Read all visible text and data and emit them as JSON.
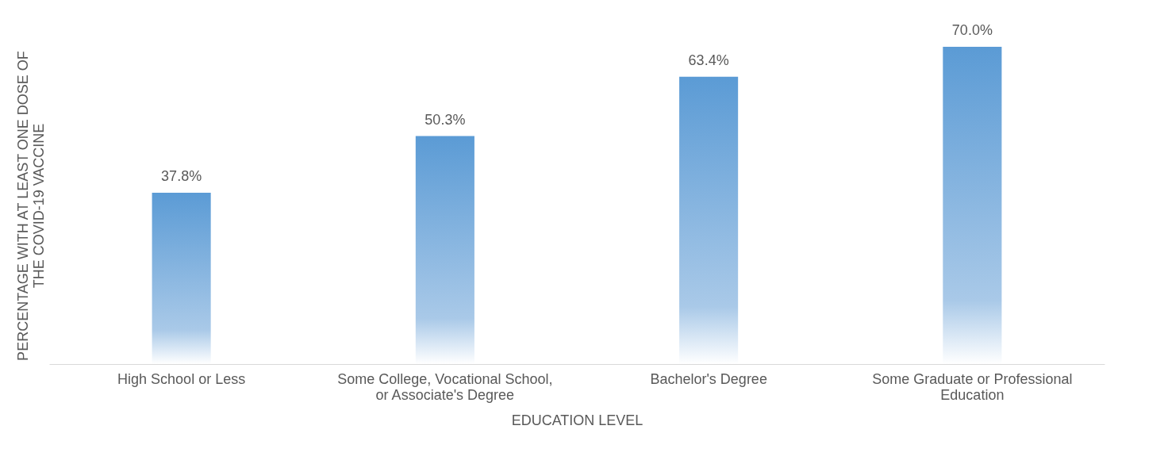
{
  "chart_data": {
    "type": "bar",
    "categories": [
      "High School or Less",
      "Some College, Vocational School, or Associate's Degree",
      "Bachelor's Degree",
      "Some Graduate or Professional Education"
    ],
    "values": [
      37.8,
      50.3,
      63.4,
      70.0
    ],
    "value_labels": [
      "37.8%",
      "50.3%",
      "63.4%",
      "70.0%"
    ],
    "color": "#5b9bd5",
    "xlabel": "EDUCATION LEVEL",
    "ylabel": "PERCENTAGE WITH AT LEAST ONE DOSE OF THE COVID-19 VACCINE"
  }
}
